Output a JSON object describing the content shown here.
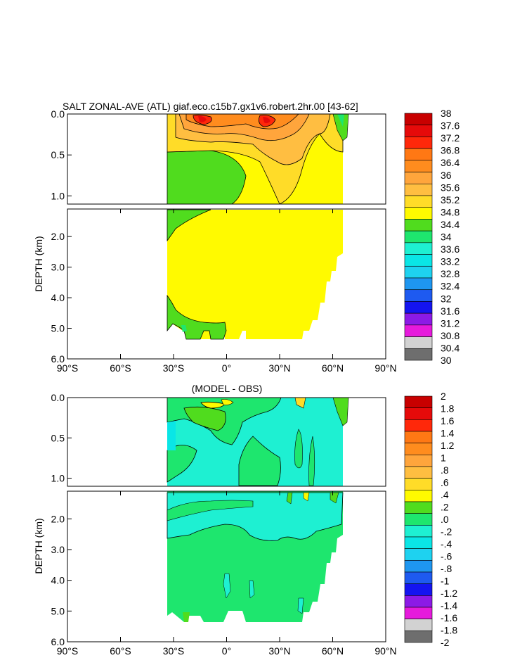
{
  "figure": {
    "top_title": "SALT ZONAL-AVE (ATL) giaf.eco.c15b7.gx1v6.robert.2hr.00 [43-62]",
    "bottom_title": "(MODEL - OBS)"
  },
  "colors": {
    "background": "#ffffff",
    "top_palette": [
      "#6e6e6e",
      "#d2d2d2",
      "#e61adc",
      "#8c1ae6",
      "#1414f0",
      "#1e5af0",
      "#1e96f0",
      "#1ed2f0",
      "#0ae6e6",
      "#1ef0d2",
      "#1ee66e",
      "#50dc1e",
      "#fffa00",
      "#ffdc28",
      "#ffbe41",
      "#ffa53c",
      "#ff8c1e",
      "#ff7814",
      "#ff280a",
      "#e60a0a",
      "#c80000"
    ],
    "bottom_palette": [
      "#6e6e6e",
      "#d2d2d2",
      "#e61adc",
      "#8c1ae6",
      "#1414f0",
      "#1e5af0",
      "#1e96f0",
      "#1ed2f0",
      "#0ae6e6",
      "#1ef0d2",
      "#1ee66e",
      "#50dc1e",
      "#fffa00",
      "#ffdc28",
      "#ffbe41",
      "#ffa53c",
      "#ff8c1e",
      "#ff7814",
      "#ff280a",
      "#e60a0a",
      "#c80000"
    ]
  },
  "chart_data": [
    {
      "type": "heatmap",
      "title": "SALT ZONAL-AVE (ATL) giaf.eco.c15b7.gx1v6.robert.2hr.00 [43-62]",
      "xlabel": "",
      "ylabel": "DEPTH (km)",
      "x_ticks": [
        "90°S",
        "60°S",
        "30°S",
        "0°",
        "30°N",
        "60°N",
        "90°N"
      ],
      "xlim": [
        -90,
        90
      ],
      "y_ticks_upper": [
        "0.0",
        "0.5",
        "1.0"
      ],
      "y_ticks_lower": [
        "2.0",
        "3.0",
        "4.0",
        "5.0",
        "6.0"
      ],
      "ylim": [
        0,
        6
      ],
      "legend_position": "right",
      "colorbar_levels": [
        "38",
        "37.6",
        "37.2",
        "36.8",
        "36.4",
        "36",
        "35.6",
        "35.2",
        "34.8",
        "34.4",
        "34",
        "33.6",
        "33.2",
        "32.8",
        "32.4",
        "32",
        "31.6",
        "31.2",
        "30.8",
        "30.4",
        "30"
      ]
    },
    {
      "type": "heatmap",
      "title": "(MODEL - OBS)",
      "xlabel": "",
      "ylabel": "DEPTH (km)",
      "x_ticks": [
        "90°S",
        "60°S",
        "30°S",
        "0°",
        "30°N",
        "60°N",
        "90°N"
      ],
      "xlim": [
        -90,
        90
      ],
      "y_ticks_upper": [
        "0.0",
        "0.5",
        "1.0"
      ],
      "y_ticks_lower": [
        "2.0",
        "3.0",
        "4.0",
        "5.0",
        "6.0"
      ],
      "ylim": [
        0,
        6
      ],
      "legend_position": "right",
      "colorbar_levels": [
        "2",
        "1.8",
        "1.6",
        "1.4",
        "1.2",
        "1",
        ".8",
        ".6",
        ".4",
        ".2",
        ".0",
        "-.2",
        "-.4",
        "-.6",
        "-.8",
        "-1",
        "-1.2",
        "-1.4",
        "-1.6",
        "-1.8",
        "-2"
      ]
    }
  ]
}
